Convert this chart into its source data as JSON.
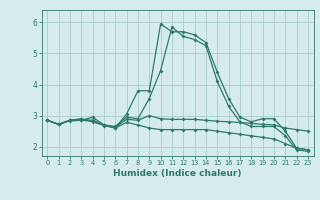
{
  "xlabel": "Humidex (Indice chaleur)",
  "ylabel": "",
  "bg_color": "#d6ecec",
  "grid_color": "#aacccc",
  "line_color": "#2d7a6a",
  "xlim": [
    -0.5,
    23.5
  ],
  "ylim": [
    1.7,
    6.4
  ],
  "xticks": [
    0,
    1,
    2,
    3,
    4,
    5,
    6,
    7,
    8,
    9,
    10,
    11,
    12,
    13,
    14,
    15,
    16,
    17,
    18,
    19,
    20,
    21,
    22,
    23
  ],
  "yticks": [
    2,
    3,
    4,
    5,
    6
  ],
  "lines": [
    {
      "x": [
        0,
        1,
        2,
        3,
        4,
        5,
        6,
        7,
        8,
        9,
        10,
        11,
        12,
        13,
        14,
        15,
        16,
        17,
        18,
        19,
        20,
        21,
        22,
        23
      ],
      "y": [
        2.85,
        2.72,
        2.85,
        2.85,
        2.95,
        2.7,
        2.6,
        3.05,
        3.8,
        3.8,
        5.95,
        5.7,
        5.7,
        5.6,
        5.35,
        4.4,
        3.55,
        2.95,
        2.8,
        2.9,
        2.9,
        2.5,
        1.95,
        1.9
      ]
    },
    {
      "x": [
        0,
        1,
        2,
        3,
        4,
        5,
        6,
        7,
        8,
        9,
        10,
        11,
        12,
        13,
        14,
        15,
        16,
        17,
        18,
        19,
        20,
        21,
        22,
        23
      ],
      "y": [
        2.85,
        2.72,
        2.85,
        2.9,
        2.8,
        2.7,
        2.65,
        2.95,
        2.9,
        3.55,
        4.45,
        5.85,
        5.55,
        5.45,
        5.25,
        4.1,
        3.3,
        2.8,
        2.65,
        2.65,
        2.65,
        2.35,
        1.9,
        1.85
      ]
    },
    {
      "x": [
        0,
        1,
        2,
        3,
        4,
        5,
        6,
        7,
        8,
        9,
        10,
        11,
        12,
        13,
        14,
        15,
        16,
        17,
        18,
        19,
        20,
        21,
        22,
        23
      ],
      "y": [
        2.85,
        2.72,
        2.83,
        2.85,
        2.82,
        2.68,
        2.6,
        2.78,
        2.7,
        2.6,
        2.55,
        2.55,
        2.55,
        2.55,
        2.55,
        2.5,
        2.45,
        2.4,
        2.35,
        2.3,
        2.25,
        2.1,
        1.95,
        1.9
      ]
    },
    {
      "x": [
        0,
        1,
        2,
        3,
        4,
        5,
        6,
        7,
        8,
        9,
        10,
        11,
        12,
        13,
        14,
        15,
        16,
        17,
        18,
        19,
        20,
        21,
        22,
        23
      ],
      "y": [
        2.85,
        2.72,
        2.85,
        2.88,
        2.85,
        2.7,
        2.62,
        2.88,
        2.85,
        3.0,
        2.9,
        2.88,
        2.88,
        2.88,
        2.85,
        2.82,
        2.8,
        2.78,
        2.75,
        2.72,
        2.7,
        2.6,
        2.55,
        2.5
      ]
    }
  ]
}
